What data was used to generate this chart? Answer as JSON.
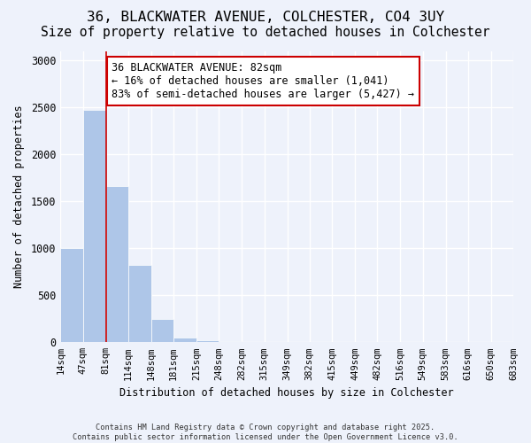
{
  "title_line1": "36, BLACKWATER AVENUE, COLCHESTER, CO4 3UY",
  "title_line2": "Size of property relative to detached houses in Colchester",
  "xlabel": "Distribution of detached houses by size in Colchester",
  "ylabel": "Number of detached properties",
  "bar_heights": [
    1000,
    2470,
    1660,
    820,
    250,
    50,
    20,
    10,
    5,
    3,
    2,
    1,
    1,
    0,
    0,
    0,
    0,
    0,
    0,
    0
  ],
  "bin_edges": [
    14,
    47,
    81,
    114,
    148,
    181,
    215,
    248,
    282,
    315,
    349,
    382,
    415,
    449,
    482,
    516,
    549,
    583,
    616,
    650,
    683
  ],
  "tick_labels": [
    "14sqm",
    "47sqm",
    "81sqm",
    "114sqm",
    "148sqm",
    "181sqm",
    "215sqm",
    "248sqm",
    "282sqm",
    "315sqm",
    "349sqm",
    "382sqm",
    "415sqm",
    "449sqm",
    "482sqm",
    "516sqm",
    "549sqm",
    "583sqm",
    "616sqm",
    "650sqm",
    "683sqm"
  ],
  "bar_color": "#aec6e8",
  "background_color": "#eef2fb",
  "grid_color": "#ffffff",
  "property_line_x": 81,
  "property_line_color": "#cc0000",
  "annotation_text": "36 BLACKWATER AVENUE: 82sqm\n← 16% of detached houses are smaller (1,041)\n83% of semi-detached houses are larger (5,427) →",
  "annotation_box_color": "#ffffff",
  "annotation_box_edge": "#cc0000",
  "ylim": [
    0,
    3100
  ],
  "yticks": [
    0,
    500,
    1000,
    1500,
    2000,
    2500,
    3000
  ],
  "footnote": "Contains HM Land Registry data © Crown copyright and database right 2025.\nContains public sector information licensed under the Open Government Licence v3.0.",
  "title_fontsize": 11.5,
  "subtitle_fontsize": 10.5,
  "axis_label_fontsize": 8.5,
  "tick_fontsize": 7.5,
  "annotation_fontsize": 8.5
}
